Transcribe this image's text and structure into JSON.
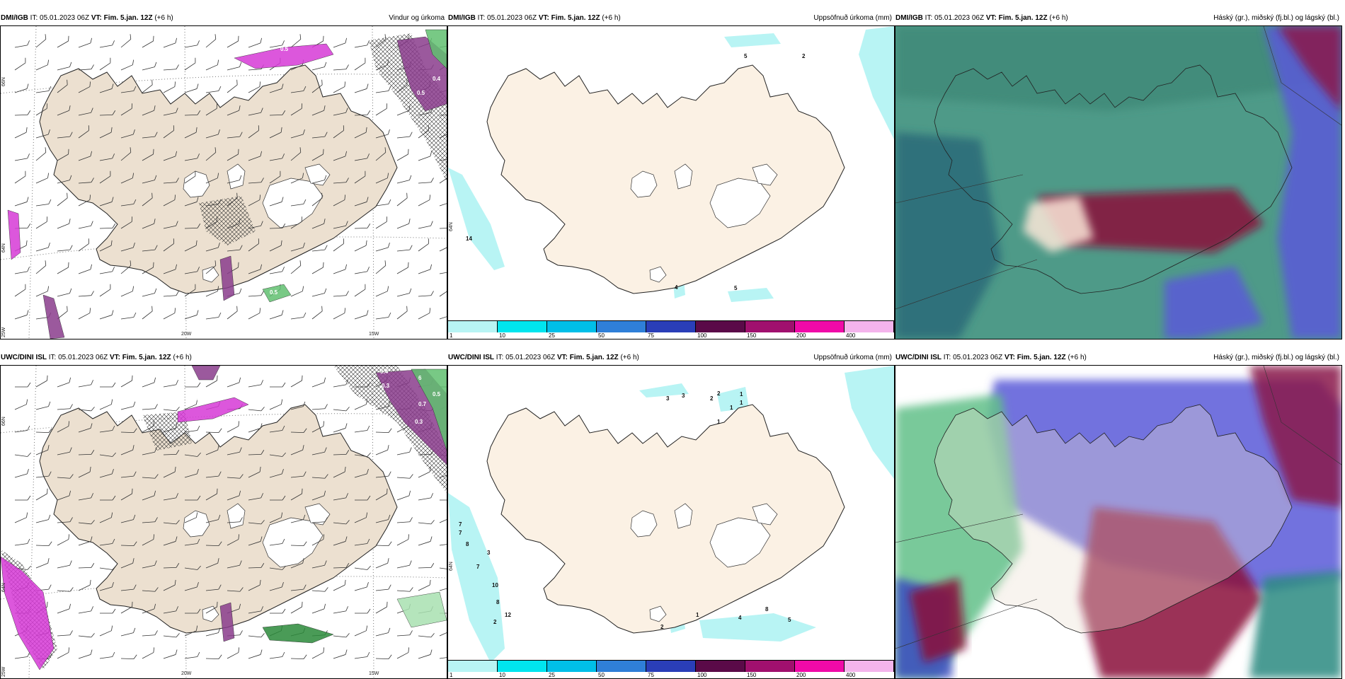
{
  "panels": [
    {
      "source": "DMI/IGB",
      "it_label": "IT:",
      "it": "05.01.2023 06Z",
      "vt_label": "VT:",
      "vt": "Fim. 5.jan. 12Z",
      "lead": "(+6 h)",
      "title": "Vindur og úrkoma",
      "type": "wind",
      "labels": [
        "0.5",
        "0.6",
        "0.4",
        "0.5",
        "0.7",
        "0.8",
        "0.5"
      ],
      "lon_labels": [
        "20W",
        "15W"
      ],
      "lat_labels": [
        "66N",
        "64N",
        "25W"
      ]
    },
    {
      "source": "DMI/IGB",
      "it_label": "IT:",
      "it": "05.01.2023 06Z",
      "vt_label": "VT:",
      "vt": "Fim. 5.jan. 12Z",
      "lead": "(+6 h)",
      "title": "Uppsöfnuð úrkoma (mm)",
      "type": "precip",
      "labels": [
        "5",
        "2",
        "14",
        "5",
        "4"
      ],
      "lat_labels": [
        "64N"
      ]
    },
    {
      "source": "DMI/IGB",
      "it_label": "IT:",
      "it": "05.01.2023 06Z",
      "vt_label": "VT:",
      "vt": "Fim. 5.jan. 12Z",
      "lead": "(+6 h)",
      "title": "Háský (gr.), miðský (fj.bl.) og lágský (bl.)",
      "type": "cloud1"
    },
    {
      "source": "UWC/DINI ISL",
      "it_label": "IT:",
      "it": "05.01.2023 06Z",
      "vt_label": "VT:",
      "vt": "Fim. 5.jan. 12Z",
      "lead": "(+6 h)",
      "title": "",
      "type": "wind2",
      "labels": [
        "0.4",
        "6",
        "0.3",
        "0.5",
        "0.7",
        "0.3",
        "0.9",
        "0.7",
        "8"
      ],
      "lon_labels": [
        "20W",
        "15W"
      ],
      "lat_labels": [
        "66N",
        "64N",
        "25W"
      ]
    },
    {
      "source": "UWC/DINI ISL",
      "it_label": "IT:",
      "it": "05.01.2023 06Z",
      "vt_label": "VT:",
      "vt": "Fim. 5.jan. 12Z",
      "lead": "(+6 h)",
      "title": "Uppsöfnuð úrkoma (mm)",
      "type": "precip2",
      "labels": [
        "3",
        "3",
        "2",
        "1",
        "2",
        "1",
        "1",
        "1",
        "7",
        "7",
        "8",
        "3",
        "7",
        "10",
        "8",
        "12",
        "2",
        "1",
        "4",
        "8",
        "5",
        "2"
      ],
      "lat_labels": [
        "64N"
      ]
    },
    {
      "source": "UWC/DINI ISL",
      "it_label": "IT:",
      "it": "05.01.2023 06Z",
      "vt_label": "VT:",
      "vt": "Fim. 5.jan. 12Z",
      "lead": "(+6 h)",
      "title": "Háský (gr.), miðský (fj.bl.) og lágský (bl.)",
      "type": "cloud2"
    }
  ],
  "colorbar": {
    "ticks": [
      "1",
      "10",
      "25",
      "50",
      "75",
      "100",
      "150",
      "200",
      "400"
    ],
    "colors": [
      "#b8f4f4",
      "#00e5ee",
      "#00bfe8",
      "#2f7fd8",
      "#2a3eb8",
      "#5a0a48",
      "#a0106e",
      "#f00aa8",
      "#f4b4ec"
    ]
  },
  "colors": {
    "land": "#ece0d0",
    "land_light": "#fbf1e4",
    "precip_light": "#b8f4f4",
    "purple": "#8a3c8c",
    "magenta": "#d63ad6",
    "green": "#60c070"
  }
}
